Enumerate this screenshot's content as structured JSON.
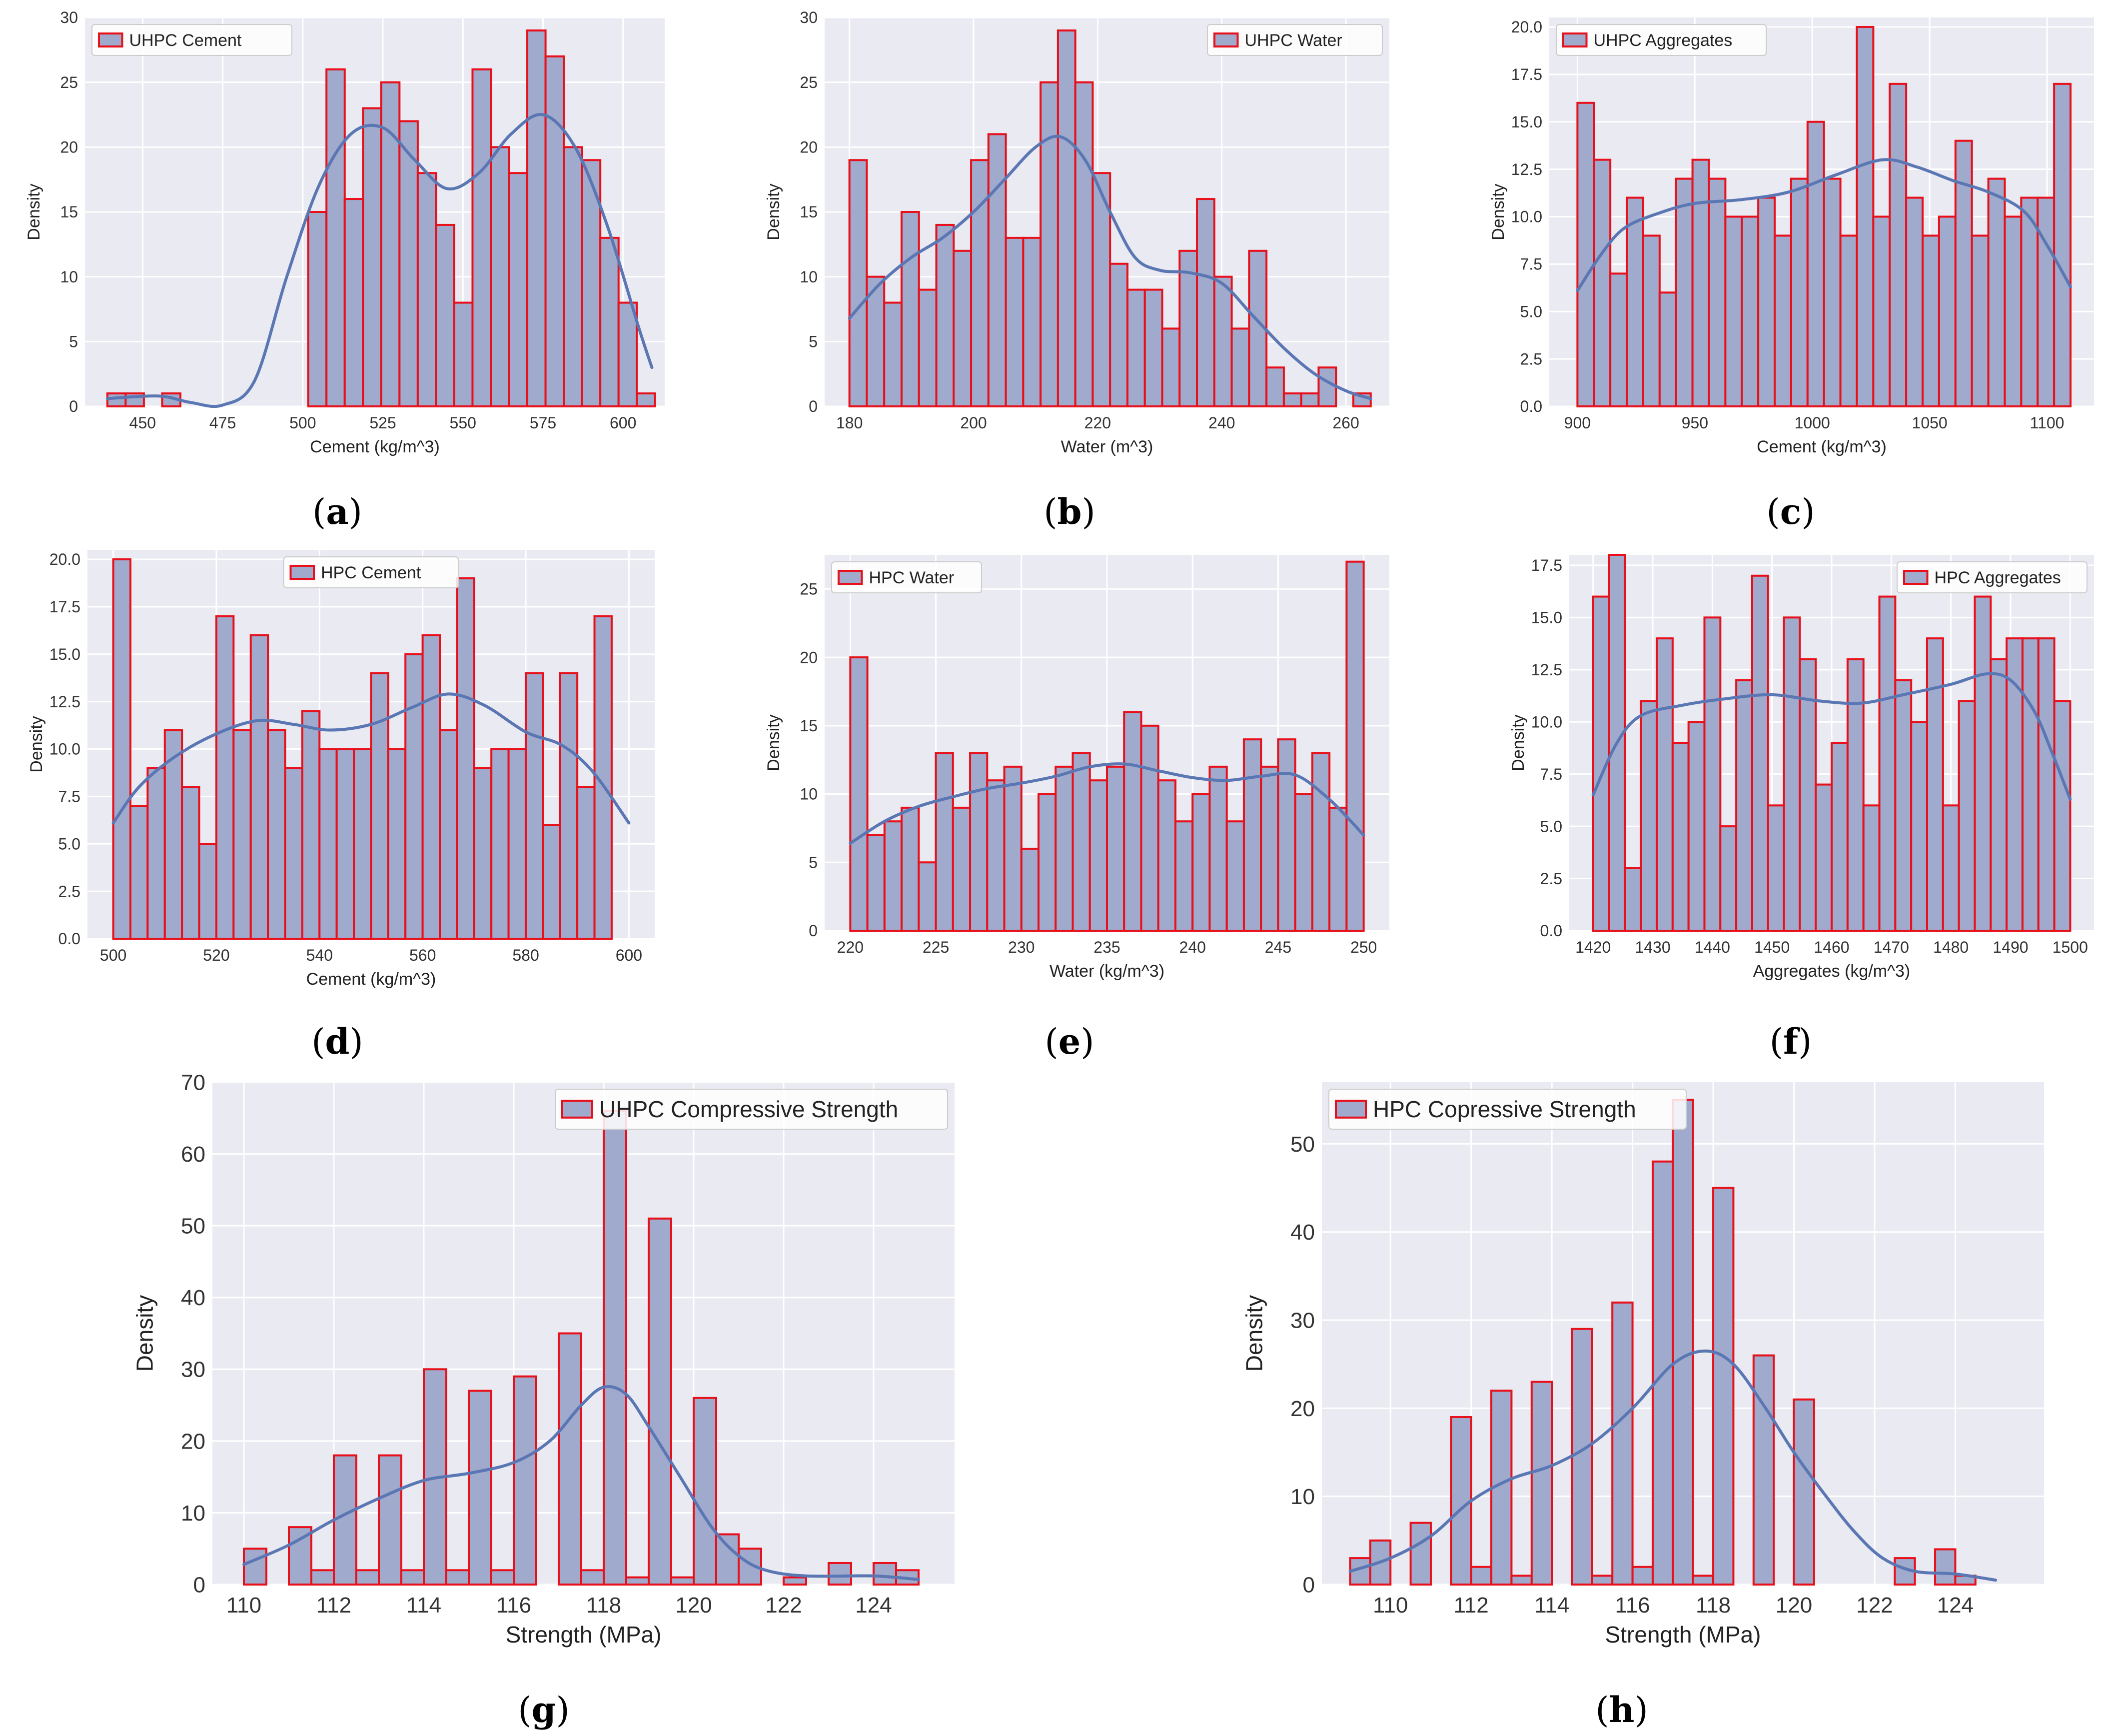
{
  "figure": {
    "colors": {
      "bar_fill": "#9faacd",
      "bar_edge": "#e8101a",
      "kde": "#5b77b3",
      "plot_bg": "#eaeaf2"
    }
  },
  "chart_data": [
    {
      "id": "a",
      "type": "bar",
      "caption": "a",
      "legend": "UHPC Cement",
      "legend_loc": "top-left",
      "xlabel": "Cement (kg/m^3)",
      "ylabel": "Density",
      "xlim": [
        432,
        613
      ],
      "ylim": [
        0,
        30
      ],
      "xticks": [
        450,
        475,
        500,
        525,
        550,
        575,
        600
      ],
      "xtick_labels": [
        "450",
        "475",
        "500",
        "525",
        "550",
        "575",
        "600"
      ],
      "yticks": [
        0,
        5,
        10,
        15,
        20,
        25,
        30
      ],
      "ytick_labels": [
        "0",
        "5",
        "10",
        "15",
        "20",
        "25",
        "30"
      ],
      "bin_start": 439,
      "bin_width": 5.7,
      "values": [
        1,
        1,
        0,
        1,
        0,
        0,
        0,
        0,
        0,
        0,
        0,
        15,
        26,
        16,
        23,
        25,
        22,
        18,
        14,
        8,
        26,
        20,
        18,
        29,
        27,
        20,
        19,
        13,
        8,
        1
      ],
      "kde": [
        [
          439,
          0.6
        ],
        [
          455,
          0.8
        ],
        [
          465,
          0.3
        ],
        [
          475,
          0.1
        ],
        [
          485,
          2
        ],
        [
          495,
          10
        ],
        [
          505,
          17
        ],
        [
          515,
          21
        ],
        [
          525,
          21.5
        ],
        [
          535,
          19
        ],
        [
          545,
          16.8
        ],
        [
          555,
          18
        ],
        [
          565,
          21
        ],
        [
          575,
          22.5
        ],
        [
          585,
          20
        ],
        [
          595,
          14
        ],
        [
          605,
          6
        ],
        [
          609,
          3
        ]
      ]
    },
    {
      "id": "b",
      "type": "bar",
      "caption": "b",
      "legend": "UHPC Water",
      "legend_loc": "top-right",
      "xlabel": "Water (m^3)",
      "ylabel": "Density",
      "xlim": [
        176,
        267
      ],
      "ylim": [
        0,
        30
      ],
      "xticks": [
        180,
        200,
        220,
        240,
        260
      ],
      "xtick_labels": [
        "180",
        "200",
        "220",
        "240",
        "260"
      ],
      "yticks": [
        0,
        5,
        10,
        15,
        20,
        25,
        30
      ],
      "ytick_labels": [
        "0",
        "5",
        "10",
        "15",
        "20",
        "25",
        "30"
      ],
      "bin_start": 180,
      "bin_width": 2.8,
      "values": [
        19,
        10,
        8,
        15,
        9,
        14,
        12,
        19,
        21,
        13,
        13,
        25,
        29,
        25,
        18,
        11,
        9,
        9,
        6,
        12,
        16,
        10,
        6,
        12,
        3,
        1,
        1,
        3,
        0,
        1
      ],
      "kde": [
        [
          180,
          6.8
        ],
        [
          185,
          9.5
        ],
        [
          190,
          11.5
        ],
        [
          195,
          13
        ],
        [
          200,
          15
        ],
        [
          205,
          17.5
        ],
        [
          210,
          20
        ],
        [
          214,
          20.8
        ],
        [
          218,
          19
        ],
        [
          222,
          15
        ],
        [
          226,
          11.5
        ],
        [
          230,
          10.5
        ],
        [
          235,
          10.3
        ],
        [
          240,
          9.5
        ],
        [
          245,
          7
        ],
        [
          250,
          4.5
        ],
        [
          255,
          2.5
        ],
        [
          260,
          1.2
        ],
        [
          264,
          0.6
        ]
      ]
    },
    {
      "id": "c",
      "type": "bar",
      "caption": "c",
      "legend": "UHPC Aggregates",
      "legend_loc": "top-left",
      "xlabel": "Cement (kg/m^3)",
      "ylabel": "Density",
      "xlim": [
        888,
        1120
      ],
      "ylim": [
        0,
        20.5
      ],
      "xticks": [
        900,
        950,
        1000,
        1050,
        1100
      ],
      "xtick_labels": [
        "900",
        "950",
        "1000",
        "1050",
        "1100"
      ],
      "yticks": [
        0,
        2.5,
        5,
        7.5,
        10,
        12.5,
        15,
        17.5,
        20
      ],
      "ytick_labels": [
        "0.0",
        "2.5",
        "5.0",
        "7.5",
        "10.0",
        "12.5",
        "15.0",
        "17.5",
        "20.0"
      ],
      "bin_start": 900,
      "bin_width": 7,
      "values": [
        16,
        13,
        7,
        11,
        9,
        6,
        12,
        13,
        12,
        10,
        10,
        11,
        9,
        12,
        15,
        12,
        9,
        20,
        10,
        17,
        11,
        9,
        10,
        14,
        9,
        12,
        10,
        11,
        11,
        17
      ],
      "kde": [
        [
          900,
          6.1
        ],
        [
          910,
          8
        ],
        [
          920,
          9.4
        ],
        [
          935,
          10.2
        ],
        [
          950,
          10.7
        ],
        [
          970,
          10.9
        ],
        [
          990,
          11.3
        ],
        [
          1010,
          12.2
        ],
        [
          1030,
          13
        ],
        [
          1045,
          12.6
        ],
        [
          1060,
          11.9
        ],
        [
          1075,
          11.3
        ],
        [
          1090,
          10.3
        ],
        [
          1100,
          8.5
        ],
        [
          1110,
          6.3
        ]
      ]
    },
    {
      "id": "d",
      "type": "bar",
      "caption": "d",
      "legend": "HPC Cement",
      "legend_loc": "top-center",
      "xlabel": "Cement (kg/m^3)",
      "ylabel": "Density",
      "xlim": [
        495,
        605
      ],
      "ylim": [
        0,
        20.5
      ],
      "xticks": [
        500,
        520,
        540,
        560,
        580,
        600
      ],
      "xtick_labels": [
        "500",
        "520",
        "540",
        "560",
        "580",
        "600"
      ],
      "yticks": [
        0,
        2.5,
        5,
        7.5,
        10,
        12.5,
        15,
        17.5,
        20
      ],
      "ytick_labels": [
        "0.0",
        "2.5",
        "5.0",
        "7.5",
        "10.0",
        "12.5",
        "15.0",
        "17.5",
        "20.0"
      ],
      "bin_start": 500,
      "bin_width": 3.333,
      "values": [
        20,
        7,
        9,
        11,
        8,
        5,
        17,
        11,
        16,
        11,
        9,
        12,
        10,
        10,
        10,
        14,
        10,
        15,
        16,
        11,
        19,
        9,
        10,
        10,
        14,
        6,
        14,
        8,
        17,
        0
      ],
      "kde": [
        [
          500,
          6.1
        ],
        [
          505,
          8
        ],
        [
          512,
          9.6
        ],
        [
          520,
          10.8
        ],
        [
          528,
          11.5
        ],
        [
          535,
          11.3
        ],
        [
          542,
          11
        ],
        [
          550,
          11.3
        ],
        [
          558,
          12.2
        ],
        [
          565,
          12.9
        ],
        [
          572,
          12.3
        ],
        [
          580,
          10.9
        ],
        [
          587,
          10.2
        ],
        [
          593,
          8.8
        ],
        [
          600,
          6.1
        ]
      ]
    },
    {
      "id": "e",
      "type": "bar",
      "caption": "e",
      "legend": "HPC Water",
      "legend_loc": "top-left",
      "xlabel": "Water (kg/m^3)",
      "ylabel": "Density",
      "xlim": [
        218.5,
        251.5
      ],
      "ylim": [
        0,
        27.5
      ],
      "xticks": [
        220,
        225,
        230,
        235,
        240,
        245,
        250
      ],
      "xtick_labels": [
        "220",
        "225",
        "230",
        "235",
        "240",
        "245",
        "250"
      ],
      "yticks": [
        0,
        5,
        10,
        15,
        20,
        25
      ],
      "ytick_labels": [
        "0",
        "5",
        "10",
        "15",
        "20",
        "25"
      ],
      "bin_start": 220,
      "bin_width": 1,
      "values": [
        20,
        7,
        8,
        9,
        5,
        13,
        9,
        13,
        11,
        12,
        6,
        10,
        12,
        13,
        11,
        12,
        16,
        15,
        11,
        8,
        10,
        12,
        8,
        14,
        12,
        14,
        10,
        13,
        9,
        27
      ],
      "kde": [
        [
          220,
          6.4
        ],
        [
          222,
          8
        ],
        [
          224,
          9.1
        ],
        [
          226,
          9.8
        ],
        [
          228,
          10.4
        ],
        [
          230,
          10.8
        ],
        [
          232,
          11.3
        ],
        [
          234,
          12
        ],
        [
          236,
          12.2
        ],
        [
          238,
          11.7
        ],
        [
          240,
          11.2
        ],
        [
          242,
          11
        ],
        [
          244,
          11.3
        ],
        [
          246,
          11.4
        ],
        [
          248,
          9.6
        ],
        [
          250,
          7
        ]
      ]
    },
    {
      "id": "f",
      "type": "bar",
      "caption": "f",
      "legend": "HPC Aggregates",
      "legend_loc": "top-right",
      "xlabel": "Aggregates (kg/m^3)",
      "ylabel": "Density",
      "xlim": [
        1416,
        1504
      ],
      "ylim": [
        0,
        18
      ],
      "xticks": [
        1420,
        1430,
        1440,
        1450,
        1460,
        1470,
        1480,
        1490,
        1500
      ],
      "xtick_labels": [
        "1420",
        "1430",
        "1440",
        "1450",
        "1460",
        "1470",
        "1480",
        "1490",
        "1500"
      ],
      "yticks": [
        0,
        2.5,
        5,
        7.5,
        10,
        12.5,
        15,
        17.5
      ],
      "ytick_labels": [
        "0.0",
        "2.5",
        "5.0",
        "7.5",
        "10.0",
        "12.5",
        "15.0",
        "17.5"
      ],
      "bin_start": 1420,
      "bin_width": 2.667,
      "values": [
        16,
        18,
        3,
        11,
        14,
        9,
        10,
        15,
        5,
        12,
        17,
        6,
        15,
        13,
        7,
        9,
        13,
        6,
        16,
        12,
        10,
        14,
        6,
        11,
        16,
        13,
        14,
        14,
        14,
        11
      ],
      "kde": [
        [
          1420,
          6.5
        ],
        [
          1424,
          9
        ],
        [
          1428,
          10.3
        ],
        [
          1435,
          10.8
        ],
        [
          1442,
          11.1
        ],
        [
          1450,
          11.3
        ],
        [
          1458,
          11
        ],
        [
          1465,
          10.9
        ],
        [
          1472,
          11.3
        ],
        [
          1480,
          11.8
        ],
        [
          1486,
          12.3
        ],
        [
          1490,
          12
        ],
        [
          1494,
          10.5
        ],
        [
          1497,
          8.5
        ],
        [
          1500,
          6.3
        ]
      ]
    },
    {
      "id": "g",
      "type": "bar",
      "caption": "g",
      "legend": "UHPC Compressive Strength",
      "legend_loc": "top-right",
      "xlabel": "Strength (MPa)",
      "ylabel": "Density",
      "xlim": [
        109.3,
        125.8
      ],
      "ylim": [
        0,
        70
      ],
      "xticks": [
        110,
        112,
        114,
        116,
        118,
        120,
        122,
        124
      ],
      "xtick_labels": [
        "110",
        "112",
        "114",
        "116",
        "118",
        "120",
        "122",
        "124"
      ],
      "yticks": [
        0,
        10,
        20,
        30,
        40,
        50,
        60,
        70
      ],
      "ytick_labels": [
        "0",
        "10",
        "20",
        "30",
        "40",
        "50",
        "60",
        "70"
      ],
      "bin_start": 110,
      "bin_width": 0.5,
      "values": [
        5,
        0,
        8,
        2,
        18,
        2,
        18,
        2,
        30,
        2,
        27,
        2,
        29,
        0,
        35,
        2,
        66,
        1,
        51,
        1,
        26,
        7,
        5,
        0,
        1,
        0,
        3,
        0,
        3,
        2
      ],
      "kde": [
        [
          110,
          2.8
        ],
        [
          111,
          5.5
        ],
        [
          112,
          9
        ],
        [
          113,
          12
        ],
        [
          114,
          14.5
        ],
        [
          115,
          15.5
        ],
        [
          116,
          17
        ],
        [
          116.8,
          20
        ],
        [
          117.5,
          25
        ],
        [
          118,
          27.5
        ],
        [
          118.5,
          26.5
        ],
        [
          119,
          22
        ],
        [
          119.7,
          15
        ],
        [
          120.4,
          8
        ],
        [
          121,
          4
        ],
        [
          121.6,
          2
        ],
        [
          122.5,
          1.2
        ],
        [
          124,
          1.2
        ],
        [
          125,
          0.7
        ]
      ]
    },
    {
      "id": "h",
      "type": "bar",
      "caption": "h",
      "legend": "HPC Copressive Strength",
      "legend_loc": "top-left",
      "xlabel": "Strength (MPa)",
      "ylabel": "Density",
      "xlim": [
        108.3,
        126.2
      ],
      "ylim": [
        0,
        57
      ],
      "xticks": [
        110,
        112,
        114,
        116,
        118,
        120,
        122,
        124
      ],
      "xtick_labels": [
        "110",
        "112",
        "114",
        "116",
        "118",
        "120",
        "122",
        "124"
      ],
      "yticks": [
        0,
        10,
        20,
        30,
        40,
        50
      ],
      "ytick_labels": [
        "0",
        "10",
        "20",
        "30",
        "40",
        "50"
      ],
      "bin_start": 109,
      "bin_width": 0.5,
      "values": [
        3,
        5,
        0,
        7,
        0,
        19,
        2,
        22,
        1,
        23,
        0,
        29,
        1,
        32,
        2,
        48,
        55,
        1,
        45,
        0,
        26,
        0,
        21,
        0,
        0,
        0,
        0,
        3,
        0,
        4,
        1
      ],
      "kde": [
        [
          109,
          1.5
        ],
        [
          110,
          3
        ],
        [
          111,
          5.5
        ],
        [
          112,
          9.5
        ],
        [
          113,
          12
        ],
        [
          114,
          13.5
        ],
        [
          115,
          16
        ],
        [
          116,
          20
        ],
        [
          117,
          25
        ],
        [
          117.8,
          26.5
        ],
        [
          118.5,
          25
        ],
        [
          119.3,
          20
        ],
        [
          120,
          15
        ],
        [
          120.8,
          10
        ],
        [
          121.5,
          6
        ],
        [
          122.2,
          3
        ],
        [
          123,
          1.5
        ],
        [
          124,
          1.2
        ],
        [
          125,
          0.5
        ]
      ]
    }
  ]
}
